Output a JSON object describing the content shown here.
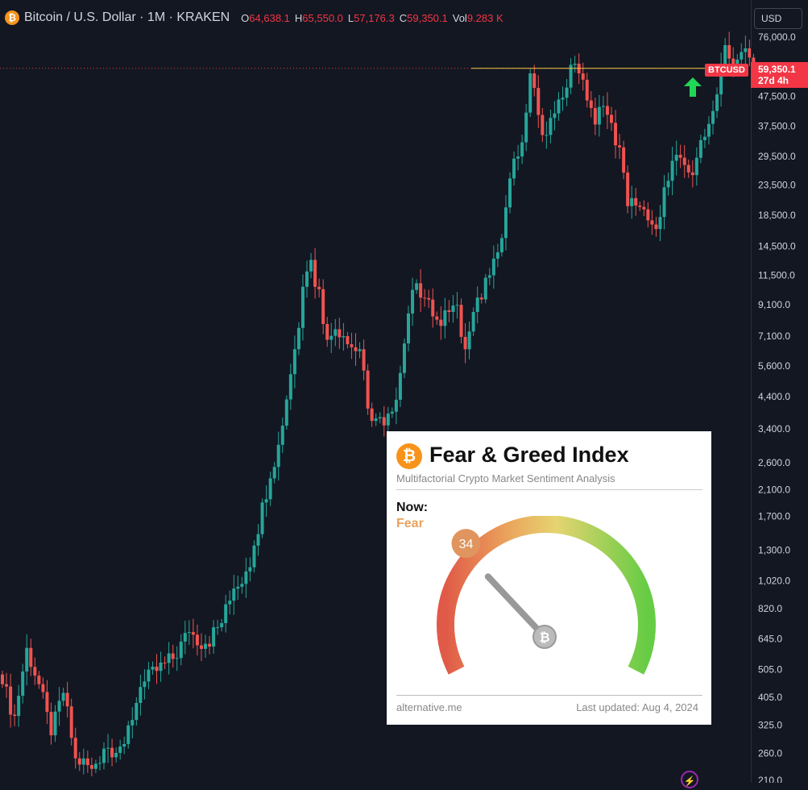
{
  "header": {
    "title": "Bitcoin / U.S. Dollar · 1M · KRAKEN",
    "open_label": "O",
    "open_value": "64,638.1",
    "high_label": "H",
    "high_value": "65,550.0",
    "low_label": "L",
    "low_value": "57,176.3",
    "close_label": "C",
    "close_value": "59,350.1",
    "volume_label": "Vol",
    "volume_value": "9.283 K",
    "coin_glyph": "₿"
  },
  "currency_selector": {
    "value": "USD"
  },
  "last_price": {
    "symbol": "BTCUSD",
    "price": "59,350.1",
    "countdown": "27d 4h"
  },
  "colors": {
    "up": "#26a69a",
    "down": "#ef5350",
    "background": "#131722",
    "last_price": "#f23645",
    "bitcoin": "#f7931a"
  },
  "icons": {
    "arrow": "green-up-arrow-icon",
    "bolt": "lightning-icon"
  },
  "chart_data": {
    "type": "candlestick",
    "title": "Bitcoin / U.S. Dollar · 1M · KRAKEN",
    "scale": "log",
    "ylim": [
      210,
      76000
    ],
    "y_ticks": [
      76000,
      47500,
      37500,
      29500,
      23500,
      18500,
      14500,
      11500,
      9100,
      7100,
      5600,
      4400,
      3400,
      2600,
      2100,
      1700,
      1300,
      1020,
      820,
      645,
      505,
      405,
      325,
      260,
      210
    ],
    "y_tick_labels": [
      "76,000.0",
      "47,500.0",
      "37,500.0",
      "29,500.0",
      "23,500.0",
      "18,500.0",
      "14,500.0",
      "11,500.0",
      "9,100.0",
      "7,100.0",
      "5,600.0",
      "4,400.0",
      "3,400.0",
      "2,600.0",
      "2,100.0",
      "1,700.0",
      "1,300.0",
      "1,020.0",
      "820.0",
      "645.0",
      "505.0",
      "405.0",
      "325.0",
      "260.0",
      "210.0"
    ],
    "last_close": 59350.1,
    "close_path": [
      {
        "i": 0,
        "c": 450
      },
      {
        "i": 3,
        "c": 350
      },
      {
        "i": 6,
        "c": 600
      },
      {
        "i": 9,
        "c": 450
      },
      {
        "i": 12,
        "c": 300
      },
      {
        "i": 15,
        "c": 420
      },
      {
        "i": 18,
        "c": 250
      },
      {
        "i": 22,
        "c": 230
      },
      {
        "i": 25,
        "c": 270
      },
      {
        "i": 30,
        "c": 280
      },
      {
        "i": 34,
        "c": 440
      },
      {
        "i": 38,
        "c": 500
      },
      {
        "i": 42,
        "c": 550
      },
      {
        "i": 46,
        "c": 680
      },
      {
        "i": 50,
        "c": 620
      },
      {
        "i": 54,
        "c": 730
      },
      {
        "i": 57,
        "c": 960
      },
      {
        "i": 60,
        "c": 1100
      },
      {
        "i": 62,
        "c": 1350
      },
      {
        "i": 64,
        "c": 1900
      },
      {
        "i": 66,
        "c": 2300
      },
      {
        "i": 68,
        "c": 3000
      },
      {
        "i": 70,
        "c": 4300
      },
      {
        "i": 72,
        "c": 6400
      },
      {
        "i": 74,
        "c": 10500
      },
      {
        "i": 76,
        "c": 13000
      },
      {
        "i": 77,
        "c": 10500
      },
      {
        "i": 78,
        "c": 10300
      },
      {
        "i": 80,
        "c": 6900
      },
      {
        "i": 82,
        "c": 7500
      },
      {
        "i": 84,
        "c": 7100
      },
      {
        "i": 86,
        "c": 6500
      },
      {
        "i": 88,
        "c": 6400
      },
      {
        "i": 90,
        "c": 4000
      },
      {
        "i": 92,
        "c": 3700
      },
      {
        "i": 94,
        "c": 3500
      },
      {
        "i": 96,
        "c": 3900
      },
      {
        "i": 98,
        "c": 5300
      },
      {
        "i": 100,
        "c": 8500
      },
      {
        "i": 102,
        "c": 10800
      },
      {
        "i": 104,
        "c": 9600
      },
      {
        "i": 106,
        "c": 8300
      },
      {
        "i": 108,
        "c": 7700
      },
      {
        "i": 110,
        "c": 8600
      },
      {
        "i": 112,
        "c": 9100
      },
      {
        "i": 114,
        "c": 6400
      },
      {
        "i": 116,
        "c": 8600
      },
      {
        "i": 118,
        "c": 9500
      },
      {
        "i": 120,
        "c": 11500
      },
      {
        "i": 122,
        "c": 13800
      },
      {
        "i": 124,
        "c": 19700
      },
      {
        "i": 126,
        "c": 29000
      },
      {
        "i": 128,
        "c": 33000
      },
      {
        "i": 130,
        "c": 57000
      },
      {
        "i": 132,
        "c": 41000
      },
      {
        "i": 134,
        "c": 35000
      },
      {
        "i": 136,
        "c": 41500
      },
      {
        "i": 138,
        "c": 47000
      },
      {
        "i": 140,
        "c": 61000
      },
      {
        "i": 142,
        "c": 57000
      },
      {
        "i": 144,
        "c": 46000
      },
      {
        "i": 146,
        "c": 38000
      },
      {
        "i": 148,
        "c": 44000
      },
      {
        "i": 150,
        "c": 38500
      },
      {
        "i": 152,
        "c": 31700
      },
      {
        "i": 154,
        "c": 19900
      },
      {
        "i": 156,
        "c": 20000
      },
      {
        "i": 158,
        "c": 19400
      },
      {
        "i": 160,
        "c": 17200
      },
      {
        "i": 161,
        "c": 16600
      },
      {
        "i": 163,
        "c": 23100
      },
      {
        "i": 165,
        "c": 28500
      },
      {
        "i": 167,
        "c": 29200
      },
      {
        "i": 169,
        "c": 26000
      },
      {
        "i": 171,
        "c": 29200
      },
      {
        "i": 173,
        "c": 34500
      },
      {
        "i": 175,
        "c": 42300
      },
      {
        "i": 177,
        "c": 61100
      },
      {
        "i": 178,
        "c": 71300
      },
      {
        "i": 180,
        "c": 60600
      },
      {
        "i": 182,
        "c": 67500
      },
      {
        "i": 184,
        "c": 64600
      },
      {
        "i": 185,
        "c": 59350
      }
    ]
  },
  "fear_greed": {
    "logo_glyph": "₿",
    "title": "Fear & Greed Index",
    "subtitle": "Multifactorial Crypto Market Sentiment Analysis",
    "now_label": "Now:",
    "classification": "Fear",
    "value": "34",
    "value_fraction": 0.34,
    "source": "alternative.me",
    "last_updated": "Last updated: Aug 4, 2024",
    "center_glyph": "₿"
  }
}
